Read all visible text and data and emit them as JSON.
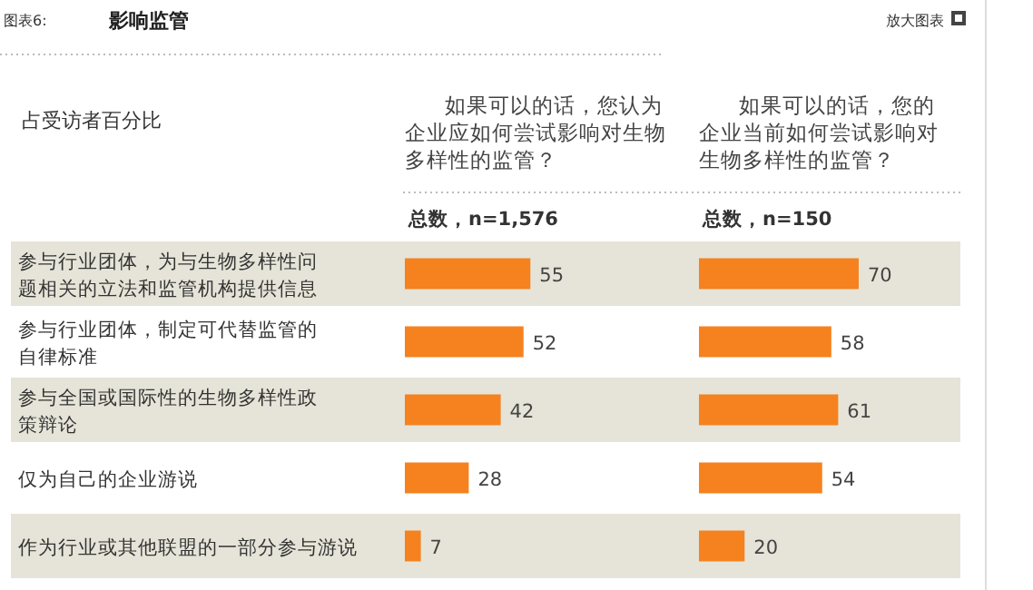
{
  "chart_data": [
    {
      "type": "bar",
      "orientation": "horizontal",
      "title": "如果可以的话，您认为企业应如何尝试影响对生物多样性的监管？",
      "subtitle": "总数，n=1,576",
      "ylabel": "占受访者百分比",
      "annotations": [
        "图表6:",
        "影响监管",
        "放大图表"
      ],
      "categories": [
        "参与行业团体，为与生物多样性问题相关的立法和监管机构提供信息",
        "参与行业团体，制定可代替监管的自律标准",
        "参与全国或国际性的生物多样性政策辩论",
        "仅为自己的企业游说",
        "作为行业或其他联盟的一部分参与游说"
      ],
      "values": [
        55,
        52,
        42,
        28,
        7
      ],
      "color": "#f5821f",
      "data_labels": true
    },
    {
      "type": "bar",
      "orientation": "horizontal",
      "title": "如果可以的话，您的企业当前如何尝试影响对生物多样性的监管？",
      "subtitle": "总数，n=150",
      "tick_labels": false,
      "categories": [
        "参与行业团体，为与生物多样性问题相关的立法和监管机构提供信息",
        "参与行业团体，制定可代替监管的自律标准",
        "参与全国或国际性的生物多样性政策辩论",
        "仅为自己的企业游说",
        "作为行业或其他联盟的一部分参与游说"
      ],
      "values": [
        70,
        58,
        61,
        54,
        20
      ],
      "color": "#f5821f",
      "data_labels": true
    }
  ]
}
